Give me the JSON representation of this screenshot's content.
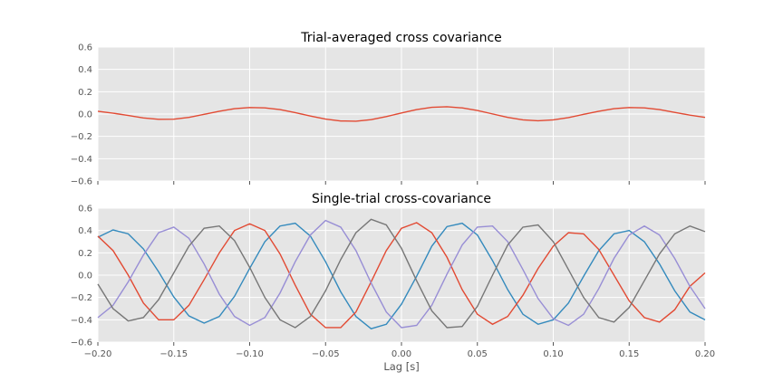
{
  "figure": {
    "xlabel": "Lag [s]"
  },
  "chart_data": [
    {
      "type": "line",
      "title": "Trial-averaged cross covariance",
      "xlabel": "",
      "ylabel": "",
      "xlim": [
        -0.2,
        0.2
      ],
      "ylim": [
        -0.6,
        0.6
      ],
      "yticks": [
        "0.6",
        "0.4",
        "0.2",
        "0.0",
        "−0.2",
        "−0.4",
        "−0.6"
      ],
      "xticks_shown": false,
      "grid": true,
      "series": [
        {
          "color": "#E24A33",
          "x": [
            -0.2,
            -0.19,
            -0.18,
            -0.17,
            -0.16,
            -0.15,
            -0.14,
            -0.13,
            -0.12,
            -0.11,
            -0.1,
            -0.09,
            -0.08,
            -0.07,
            -0.06,
            -0.05,
            -0.04,
            -0.03,
            -0.02,
            -0.01,
            0.0,
            0.01,
            0.02,
            0.03,
            0.04,
            0.05,
            0.06,
            0.07,
            0.08,
            0.09,
            0.1,
            0.11,
            0.12,
            0.13,
            0.14,
            0.15,
            0.16,
            0.17,
            0.18,
            0.19,
            0.2
          ],
          "y": [
            0.025,
            0.008,
            -0.013,
            -0.035,
            -0.047,
            -0.046,
            -0.03,
            -0.003,
            0.025,
            0.048,
            0.058,
            0.055,
            0.04,
            0.013,
            -0.018,
            -0.045,
            -0.062,
            -0.064,
            -0.05,
            -0.023,
            0.01,
            0.04,
            0.06,
            0.065,
            0.055,
            0.032,
            0.001,
            -0.03,
            -0.052,
            -0.06,
            -0.052,
            -0.032,
            -0.003,
            0.025,
            0.048,
            0.058,
            0.055,
            0.04,
            0.015,
            -0.01,
            -0.03
          ]
        }
      ]
    },
    {
      "type": "line",
      "title": "Single-trial cross-covariance",
      "xlabel": "Lag [s]",
      "ylabel": "",
      "xlim": [
        -0.2,
        0.2
      ],
      "ylim": [
        -0.6,
        0.6
      ],
      "yticks": [
        "0.6",
        "0.4",
        "0.2",
        "0.0",
        "−0.2",
        "−0.4",
        "−0.6"
      ],
      "xticks": [
        "−0.20",
        "−0.15",
        "−0.10",
        "−0.05",
        "0.00",
        "0.05",
        "0.10",
        "0.15",
        "0.20"
      ],
      "grid": true,
      "series": [
        {
          "color": "#348ABD",
          "x": [
            -0.2,
            -0.19,
            -0.18,
            -0.17,
            -0.16,
            -0.15,
            -0.14,
            -0.13,
            -0.12,
            -0.11,
            -0.1,
            -0.09,
            -0.08,
            -0.07,
            -0.06,
            -0.05,
            -0.04,
            -0.03,
            -0.02,
            -0.01,
            0.0,
            0.01,
            0.02,
            0.03,
            0.04,
            0.05,
            0.06,
            0.07,
            0.08,
            0.09,
            0.1,
            0.11,
            0.12,
            0.13,
            0.14,
            0.15,
            0.16,
            0.17,
            0.18,
            0.19,
            0.2
          ],
          "y": [
            0.34,
            0.405,
            0.37,
            0.235,
            0.03,
            -0.195,
            -0.365,
            -0.43,
            -0.37,
            -0.19,
            0.06,
            0.3,
            0.44,
            0.465,
            0.35,
            0.12,
            -0.15,
            -0.37,
            -0.48,
            -0.44,
            -0.26,
            -0.01,
            0.26,
            0.435,
            0.465,
            0.36,
            0.13,
            -0.13,
            -0.35,
            -0.44,
            -0.4,
            -0.25,
            -0.01,
            0.22,
            0.37,
            0.4,
            0.3,
            0.1,
            -0.14,
            -0.33,
            -0.4
          ]
        },
        {
          "color": "#E24A33",
          "x": [
            -0.2,
            -0.19,
            -0.18,
            -0.17,
            -0.16,
            -0.15,
            -0.14,
            -0.13,
            -0.12,
            -0.11,
            -0.1,
            -0.09,
            -0.08,
            -0.07,
            -0.06,
            -0.05,
            -0.04,
            -0.03,
            -0.02,
            -0.01,
            0.0,
            0.01,
            0.02,
            0.03,
            0.04,
            0.05,
            0.06,
            0.07,
            0.08,
            0.09,
            0.1,
            0.11,
            0.12,
            0.13,
            0.14,
            0.15,
            0.16,
            0.17,
            0.18,
            0.19,
            0.2
          ],
          "y": [
            0.35,
            0.22,
            0.0,
            -0.25,
            -0.4,
            -0.4,
            -0.27,
            -0.04,
            0.2,
            0.4,
            0.46,
            0.4,
            0.19,
            -0.09,
            -0.35,
            -0.47,
            -0.47,
            -0.33,
            -0.06,
            0.22,
            0.42,
            0.47,
            0.38,
            0.16,
            -0.13,
            -0.35,
            -0.44,
            -0.37,
            -0.18,
            0.06,
            0.26,
            0.38,
            0.37,
            0.23,
            0.0,
            -0.23,
            -0.38,
            -0.42,
            -0.31,
            -0.1,
            0.02
          ]
        },
        {
          "color": "#988ED5",
          "x": [
            -0.2,
            -0.19,
            -0.18,
            -0.17,
            -0.16,
            -0.15,
            -0.14,
            -0.13,
            -0.12,
            -0.11,
            -0.1,
            -0.09,
            -0.08,
            -0.07,
            -0.06,
            -0.05,
            -0.04,
            -0.03,
            -0.02,
            -0.01,
            0.0,
            0.01,
            0.02,
            0.03,
            0.04,
            0.05,
            0.06,
            0.07,
            0.08,
            0.09,
            0.1,
            0.11,
            0.12,
            0.13,
            0.14,
            0.15,
            0.16,
            0.17,
            0.18,
            0.19,
            0.2
          ],
          "y": [
            -0.38,
            -0.27,
            -0.06,
            0.18,
            0.38,
            0.43,
            0.33,
            0.1,
            -0.17,
            -0.37,
            -0.45,
            -0.38,
            -0.16,
            0.12,
            0.36,
            0.49,
            0.43,
            0.22,
            -0.07,
            -0.33,
            -0.47,
            -0.45,
            -0.27,
            0.01,
            0.27,
            0.43,
            0.44,
            0.3,
            0.05,
            -0.21,
            -0.39,
            -0.45,
            -0.35,
            -0.12,
            0.15,
            0.36,
            0.44,
            0.36,
            0.15,
            -0.1,
            -0.3
          ]
        },
        {
          "color": "#777777",
          "x": [
            -0.2,
            -0.19,
            -0.18,
            -0.17,
            -0.16,
            -0.15,
            -0.14,
            -0.13,
            -0.12,
            -0.11,
            -0.1,
            -0.09,
            -0.08,
            -0.07,
            -0.06,
            -0.05,
            -0.04,
            -0.03,
            -0.02,
            -0.01,
            0.0,
            0.01,
            0.02,
            0.03,
            0.04,
            0.05,
            0.06,
            0.07,
            0.08,
            0.09,
            0.1,
            0.11,
            0.12,
            0.13,
            0.14,
            0.15,
            0.16,
            0.17,
            0.18,
            0.19,
            0.2
          ],
          "y": [
            -0.08,
            -0.3,
            -0.41,
            -0.38,
            -0.22,
            0.02,
            0.26,
            0.42,
            0.44,
            0.31,
            0.07,
            -0.2,
            -0.4,
            -0.47,
            -0.37,
            -0.14,
            0.14,
            0.38,
            0.5,
            0.45,
            0.24,
            -0.05,
            -0.32,
            -0.47,
            -0.46,
            -0.28,
            0.0,
            0.27,
            0.43,
            0.45,
            0.3,
            0.05,
            -0.2,
            -0.38,
            -0.42,
            -0.29,
            -0.05,
            0.19,
            0.37,
            0.44,
            0.39
          ]
        }
      ]
    }
  ]
}
